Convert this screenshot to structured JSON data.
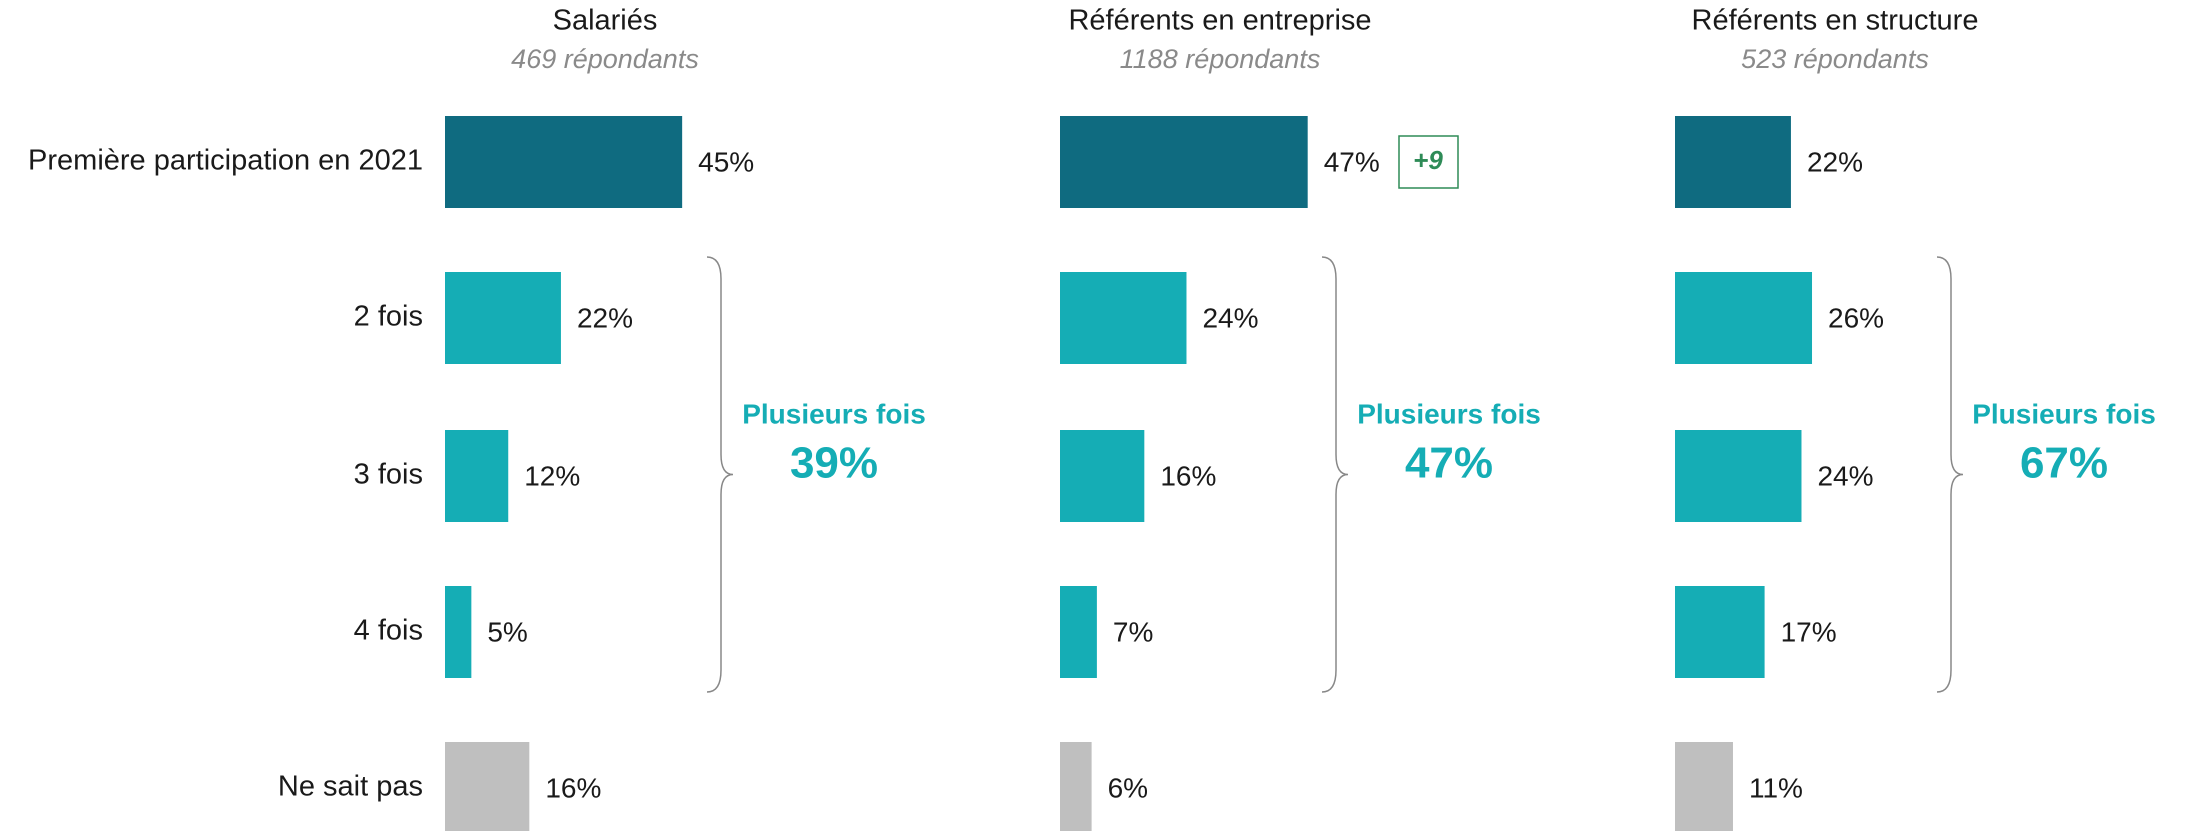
{
  "chart_data": [
    {
      "type": "bar",
      "title": "Salariés",
      "subtitle": "469 répondants",
      "categories": [
        "Première participation en 2021",
        "2 fois",
        "3 fois",
        "4 fois",
        "Ne sait pas"
      ],
      "values": [
        45,
        22,
        12,
        5,
        16
      ],
      "value_labels": [
        "45%",
        "22%",
        "12%",
        "5%",
        "16%"
      ],
      "colors": [
        "#0f6b80",
        "#15adb5",
        "#15adb5",
        "#15adb5",
        "#bfbfbf"
      ],
      "annotation": {
        "text": "Plusieurs fois",
        "value": 39,
        "value_label": "39%"
      }
    },
    {
      "type": "bar",
      "title": "Référents en entreprise",
      "subtitle": "1188 répondants",
      "values": [
        47,
        24,
        16,
        7,
        6
      ],
      "value_labels": [
        "47%",
        "24%",
        "16%",
        "7%",
        "6%"
      ],
      "colors": [
        "#0f6b80",
        "#15adb5",
        "#15adb5",
        "#15adb5",
        "#bfbfbf"
      ],
      "badge": {
        "value": 9,
        "label": "+9"
      },
      "annotation": {
        "text": "Plusieurs fois",
        "value": 47,
        "value_label": "47%"
      }
    },
    {
      "type": "bar",
      "title": "Référents en structure",
      "subtitle": "523 répondants",
      "values": [
        22,
        26,
        24,
        17,
        11
      ],
      "value_labels": [
        "22%",
        "26%",
        "24%",
        "17%",
        "11%"
      ],
      "colors": [
        "#0f6b80",
        "#15adb5",
        "#15adb5",
        "#15adb5",
        "#bfbfbf"
      ],
      "annotation": {
        "text": "Plusieurs fois",
        "value": 67,
        "value_label": "67%"
      }
    }
  ]
}
